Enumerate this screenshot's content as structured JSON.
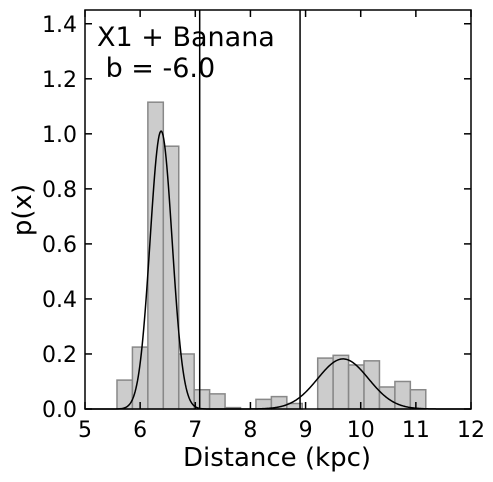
{
  "chart_data": {
    "type": "histogram",
    "annotation_lines": [
      "X1 + Banana",
      " b = -6.0"
    ],
    "xlabel": "Distance (kpc)",
    "ylabel": "p(x)",
    "xlim": [
      5,
      12
    ],
    "ylim": [
      0,
      1.45
    ],
    "xticks": [
      "5",
      "6",
      "7",
      "8",
      "9",
      "10",
      "11",
      "12"
    ],
    "yticks": [
      "0.0",
      "0.2",
      "0.4",
      "0.6",
      "0.8",
      "1.0",
      "1.2",
      "1.4"
    ],
    "grid": false,
    "bin_width": 0.28,
    "histogram_bins": [
      {
        "x0": 5.58,
        "x1": 5.86,
        "value": 0.105
      },
      {
        "x0": 5.86,
        "x1": 6.14,
        "value": 0.225
      },
      {
        "x0": 6.14,
        "x1": 6.42,
        "value": 1.115
      },
      {
        "x0": 6.42,
        "x1": 6.7,
        "value": 0.955
      },
      {
        "x0": 6.7,
        "x1": 6.98,
        "value": 0.2
      },
      {
        "x0": 6.98,
        "x1": 7.26,
        "value": 0.07
      },
      {
        "x0": 7.26,
        "x1": 7.54,
        "value": 0.055
      },
      {
        "x0": 7.54,
        "x1": 7.82,
        "value": 0.005
      },
      {
        "x0": 7.82,
        "x1": 8.1,
        "value": 0.0
      },
      {
        "x0": 8.1,
        "x1": 8.38,
        "value": 0.035
      },
      {
        "x0": 8.38,
        "x1": 8.66,
        "value": 0.045
      },
      {
        "x0": 8.66,
        "x1": 8.94,
        "value": 0.02
      },
      {
        "x0": 8.94,
        "x1": 9.22,
        "value": 0.0
      },
      {
        "x0": 9.22,
        "x1": 9.5,
        "value": 0.185
      },
      {
        "x0": 9.5,
        "x1": 9.78,
        "value": 0.195
      },
      {
        "x0": 9.78,
        "x1": 10.06,
        "value": 0.16
      },
      {
        "x0": 10.06,
        "x1": 10.34,
        "value": 0.175
      },
      {
        "x0": 10.34,
        "x1": 10.62,
        "value": 0.08
      },
      {
        "x0": 10.62,
        "x1": 10.9,
        "value": 0.1
      },
      {
        "x0": 10.9,
        "x1": 11.18,
        "value": 0.07
      }
    ],
    "fit_components": [
      {
        "mean": 6.38,
        "sigma": 0.2,
        "peak": 1.01
      },
      {
        "mean": 9.68,
        "sigma": 0.46,
        "peak": 0.182
      }
    ],
    "vertical_lines_x": [
      7.08,
      8.9
    ],
    "colors": {
      "hist_fill": "#cccccc",
      "hist_edge": "#888888",
      "fit_line": "#000000",
      "vline": "#000000"
    }
  }
}
